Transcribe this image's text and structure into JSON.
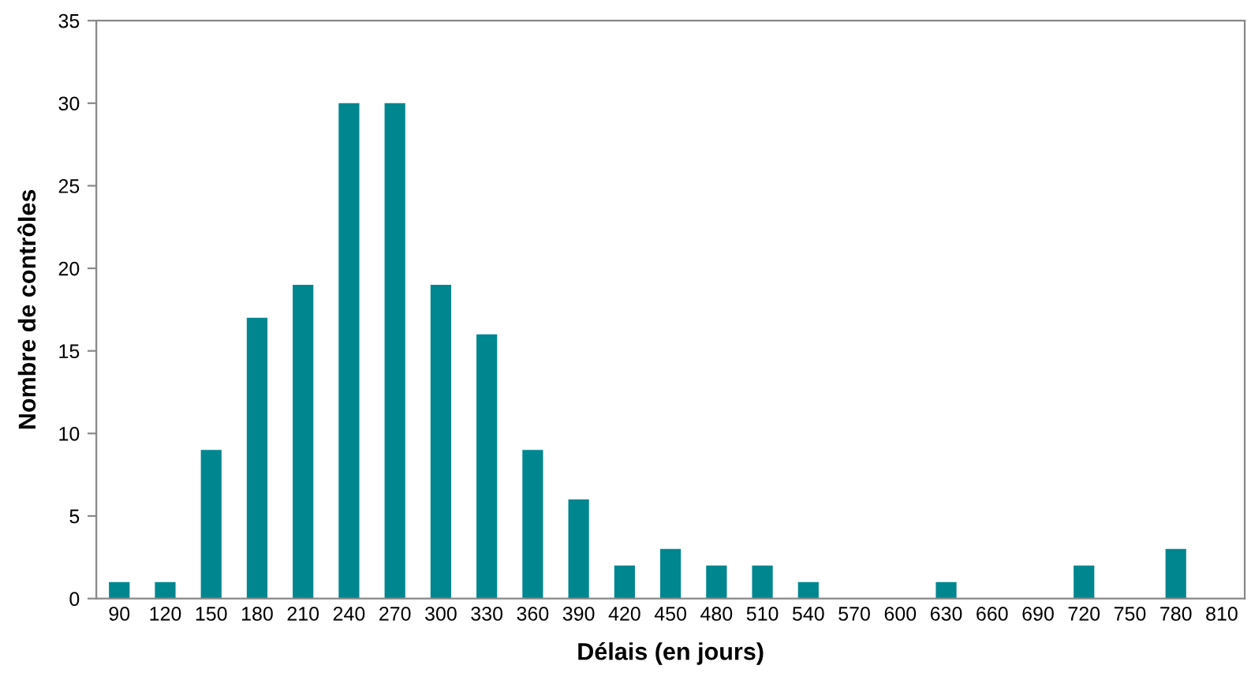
{
  "chart_data": {
    "type": "bar",
    "xlabel": "Délais (en jours)",
    "ylabel": "Nombre de contrôles",
    "categories": [
      "90",
      "120",
      "150",
      "180",
      "210",
      "240",
      "270",
      "300",
      "330",
      "360",
      "390",
      "420",
      "450",
      "480",
      "510",
      "540",
      "570",
      "600",
      "630",
      "660",
      "690",
      "720",
      "750",
      "780",
      "810"
    ],
    "values": [
      1,
      1,
      9,
      17,
      19,
      30,
      30,
      19,
      16,
      9,
      6,
      2,
      3,
      2,
      2,
      1,
      0,
      0,
      1,
      0,
      0,
      2,
      0,
      3,
      0
    ],
    "color": "#00868f",
    "ylim": [
      0,
      35
    ],
    "yticks": [
      0,
      5,
      10,
      15,
      20,
      25,
      30,
      35
    ],
    "grid": false,
    "legend": false
  }
}
